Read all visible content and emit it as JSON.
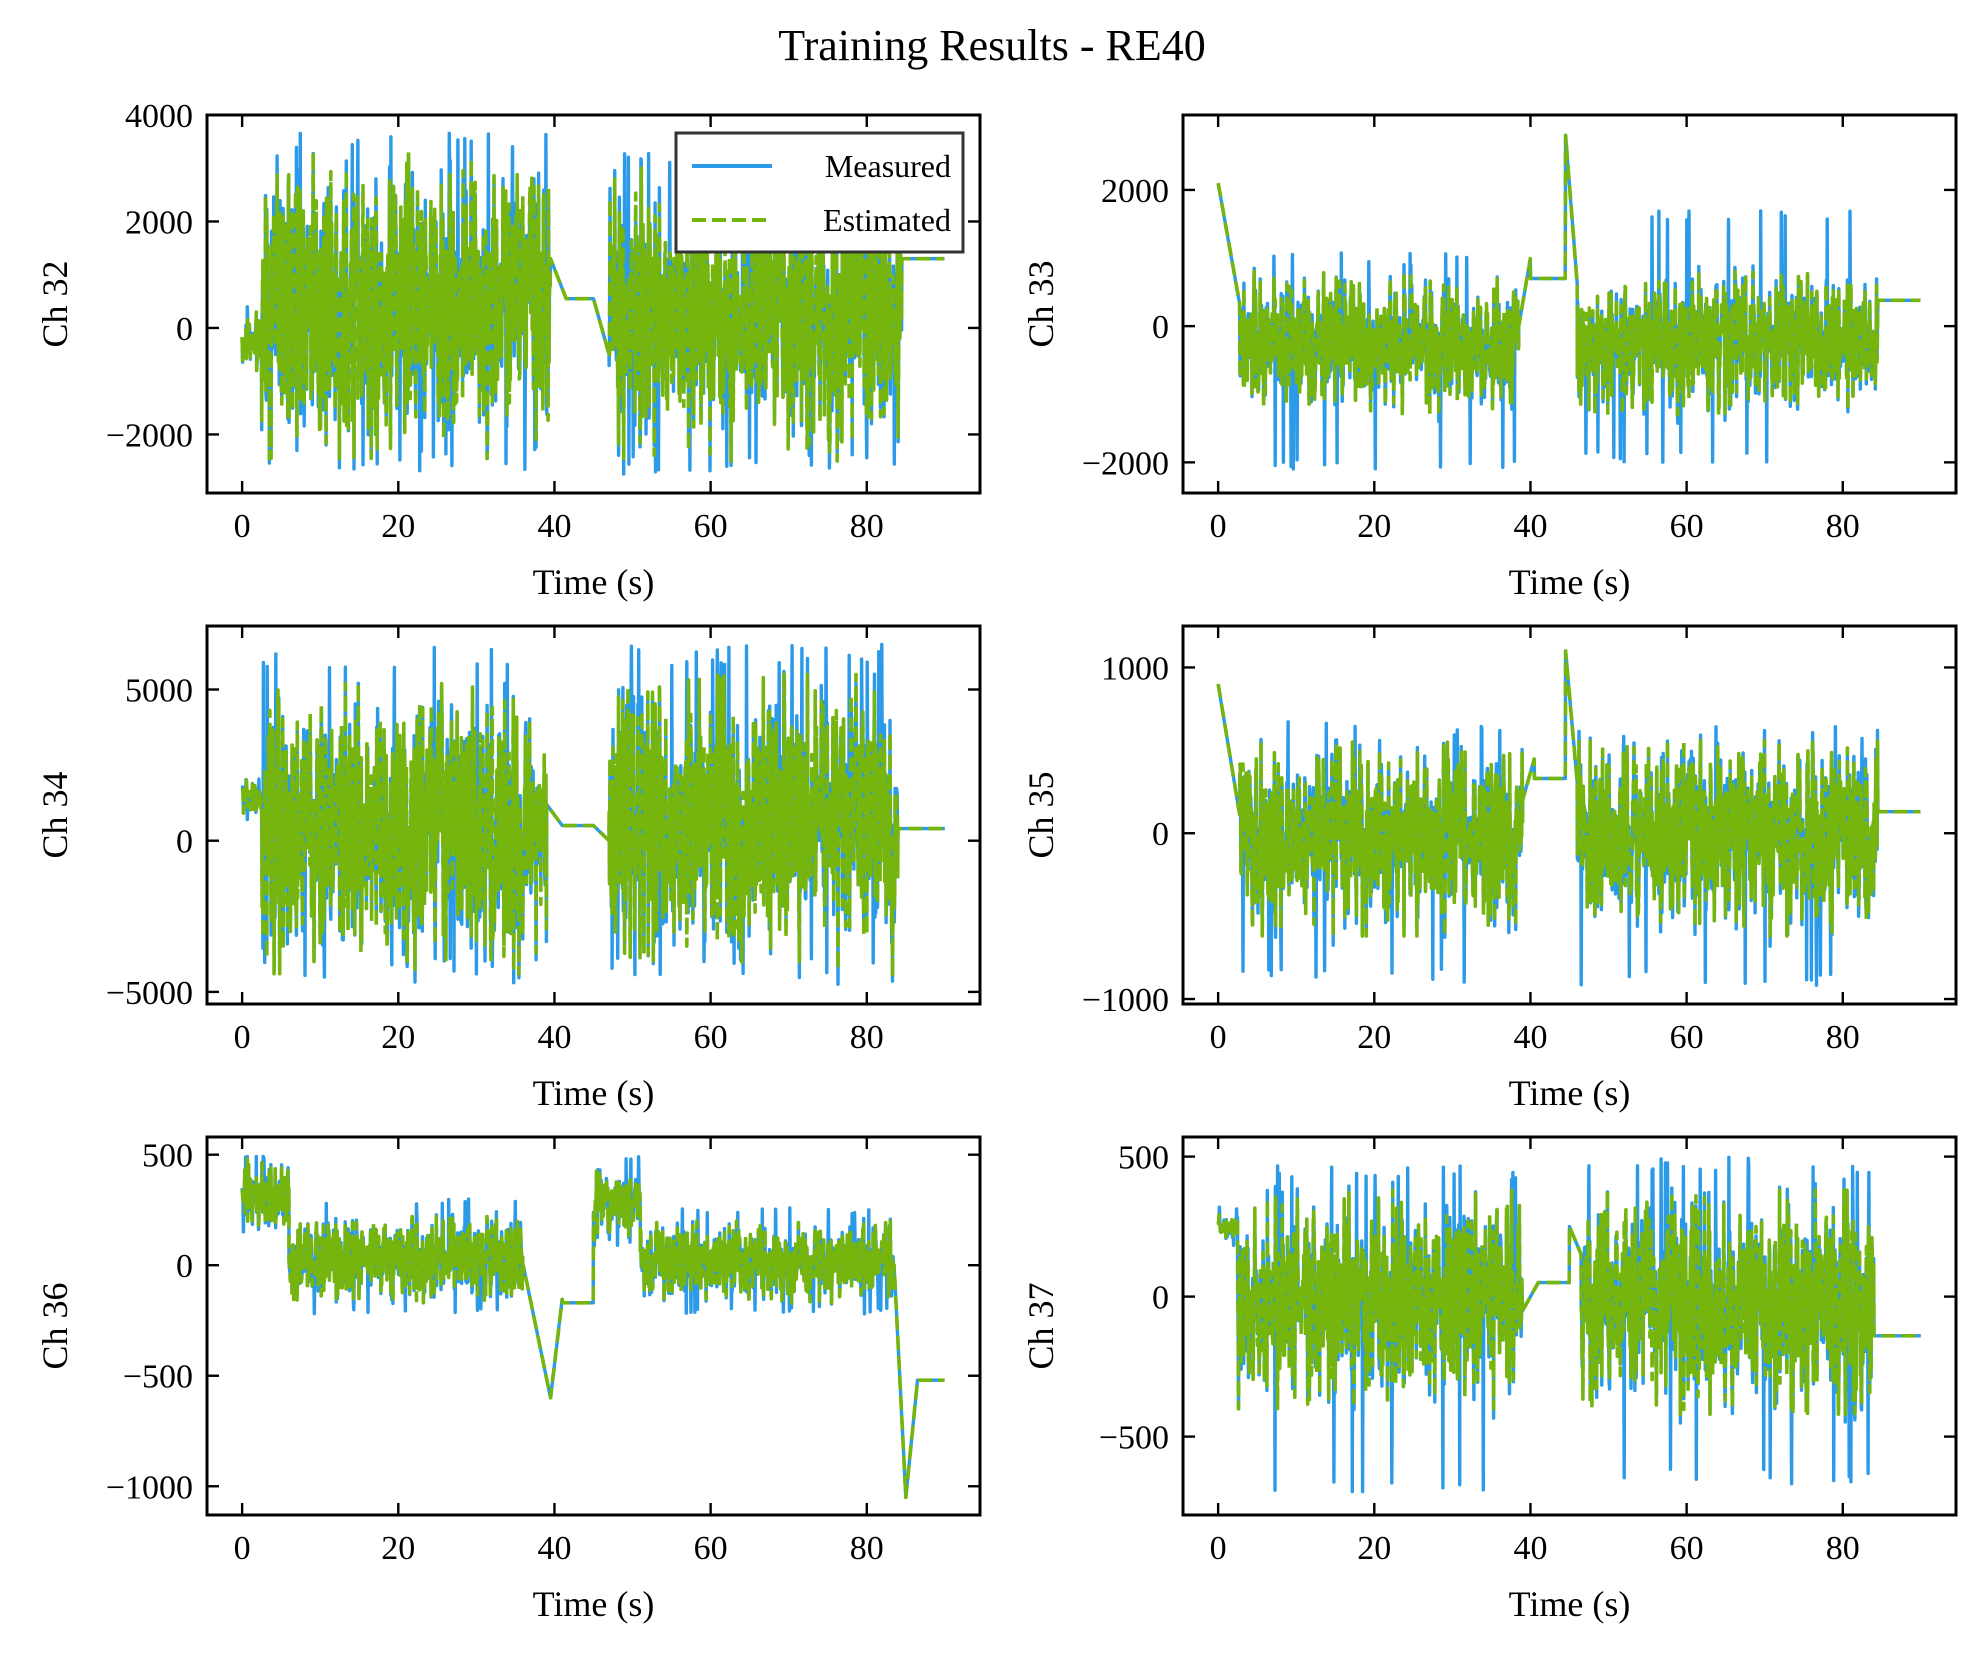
{
  "figure": {
    "title": "Training Results - RE40"
  },
  "legend": {
    "entries": [
      "Measured",
      "Estimated"
    ],
    "placement": "upper-right of first panel"
  },
  "colors": {
    "measured": "#2b9ae8",
    "estimated": "#76b40e",
    "axes": "#000000"
  },
  "chart_data": [
    {
      "type": "line",
      "channel": "Ch 32",
      "xlabel": "Time (s)",
      "ylabel": "Ch 32",
      "xlim": [
        -4.5,
        94.5
      ],
      "ylim": [
        -3100,
        4000
      ],
      "xticks": [
        0,
        20,
        40,
        60,
        80
      ],
      "yticks": [
        -2000,
        0,
        2000,
        4000
      ],
      "xtick_labels": [
        "0",
        "20",
        "40",
        "60",
        "80"
      ],
      "ytick_labels": [
        "−2000",
        "0",
        "2000",
        "4000"
      ],
      "legend": true,
      "x_end": 90,
      "segments": [
        {
          "type": "noise",
          "t0": 0,
          "t1": 2.5,
          "lo": -800,
          "hi": 300,
          "mlo": -900,
          "mhi": 400
        },
        {
          "type": "noise",
          "t0": 2.5,
          "t1": 39.5,
          "lo": -2450,
          "hi": 3300,
          "mlo": -2700,
          "mhi": 3700
        },
        {
          "type": "ramp",
          "t0": 39.5,
          "t1": 41.5,
          "v0": 1300,
          "v1": 550
        },
        {
          "type": "flat",
          "t0": 41.5,
          "t1": 45,
          "v": 550
        },
        {
          "type": "ramp",
          "t0": 45,
          "t1": 47,
          "v0": 550,
          "v1": -500
        },
        {
          "type": "noise",
          "t0": 47,
          "t1": 84.5,
          "lo": -2500,
          "hi": 3000,
          "mlo": -2800,
          "mhi": 3300
        },
        {
          "type": "flat",
          "t0": 84.5,
          "t1": 90,
          "v": 1300
        }
      ]
    },
    {
      "type": "line",
      "channel": "Ch 33",
      "xlabel": "Time (s)",
      "ylabel": "Ch 33",
      "xlim": [
        -4.5,
        94.5
      ],
      "ylim": [
        -2450,
        3100
      ],
      "xticks": [
        0,
        20,
        40,
        60,
        80
      ],
      "yticks": [
        -2000,
        0,
        2000
      ],
      "xtick_labels": [
        "0",
        "20",
        "40",
        "60",
        "80"
      ],
      "ytick_labels": [
        "−2000",
        "0",
        "2000"
      ],
      "legend": false,
      "x_end": 90,
      "segments": [
        {
          "type": "ramp",
          "t0": 0,
          "t1": 2.8,
          "v0": 2100,
          "v1": 300
        },
        {
          "type": "noise",
          "t0": 2.8,
          "t1": 38.5,
          "lo": -1300,
          "hi": 800,
          "mlo": -2100,
          "mhi": 1100
        },
        {
          "type": "ramp",
          "t0": 38.5,
          "t1": 40,
          "v0": 0,
          "v1": 1000
        },
        {
          "type": "flat",
          "t0": 40,
          "t1": 44.5,
          "v": 700
        },
        {
          "type": "ramp",
          "t0": 44.5,
          "t1": 46,
          "v0": 2800,
          "v1": 600
        },
        {
          "type": "noise",
          "t0": 46,
          "t1": 84.5,
          "lo": -1300,
          "hi": 800,
          "mlo": -2000,
          "mhi": 1700
        },
        {
          "type": "flat",
          "t0": 84.5,
          "t1": 90,
          "v": 380
        }
      ]
    },
    {
      "type": "line",
      "channel": "Ch 34",
      "xlabel": "Time (s)",
      "ylabel": "Ch 34",
      "xlim": [
        -4.5,
        94.5
      ],
      "ylim": [
        -5400,
        7100
      ],
      "xticks": [
        0,
        20,
        40,
        60,
        80
      ],
      "yticks": [
        -5000,
        0,
        5000
      ],
      "xtick_labels": [
        "0",
        "20",
        "40",
        "60",
        "80"
      ],
      "ytick_labels": [
        "−5000",
        "0",
        "5000"
      ],
      "legend": false,
      "x_end": 90,
      "segments": [
        {
          "type": "noise",
          "t0": 0,
          "t1": 2.5,
          "lo": 800,
          "hi": 2000,
          "mlo": 700,
          "mhi": 2100
        },
        {
          "type": "noise",
          "t0": 2.5,
          "t1": 39,
          "lo": -4400,
          "hi": 5200,
          "mlo": -4600,
          "mhi": 6400
        },
        {
          "type": "ramp",
          "t0": 39,
          "t1": 41,
          "v0": 1200,
          "v1": 500
        },
        {
          "type": "flat",
          "t0": 41,
          "t1": 45,
          "v": 500
        },
        {
          "type": "ramp",
          "t0": 45,
          "t1": 47,
          "v0": 500,
          "v1": 0
        },
        {
          "type": "noise",
          "t0": 47,
          "t1": 84,
          "lo": -4500,
          "hi": 5500,
          "mlo": -4600,
          "mhi": 6500
        },
        {
          "type": "flat",
          "t0": 84,
          "t1": 90,
          "v": 400
        }
      ]
    },
    {
      "type": "line",
      "channel": "Ch 35",
      "xlabel": "Time (s)",
      "ylabel": "Ch 35",
      "xlim": [
        -4.5,
        94.5
      ],
      "ylim": [
        -1030,
        1250
      ],
      "xticks": [
        0,
        20,
        40,
        60,
        80
      ],
      "yticks": [
        -1000,
        0,
        1000
      ],
      "xtick_labels": [
        "0",
        "20",
        "40",
        "60",
        "80"
      ],
      "ytick_labels": [
        "−1000",
        "0",
        "1000"
      ],
      "legend": false,
      "x_end": 90,
      "segments": [
        {
          "type": "ramp",
          "t0": 0,
          "t1": 2.8,
          "v0": 900,
          "v1": 100
        },
        {
          "type": "noise",
          "t0": 2.8,
          "t1": 39,
          "lo": -620,
          "hi": 550,
          "mlo": -900,
          "mhi": 680
        },
        {
          "type": "ramp",
          "t0": 39,
          "t1": 40.5,
          "v0": 200,
          "v1": 450
        },
        {
          "type": "flat",
          "t0": 40.5,
          "t1": 44.5,
          "v": 330
        },
        {
          "type": "ramp",
          "t0": 44.5,
          "t1": 46,
          "v0": 1100,
          "v1": 300
        },
        {
          "type": "noise",
          "t0": 46,
          "t1": 84.5,
          "lo": -620,
          "hi": 560,
          "mlo": -920,
          "mhi": 650
        },
        {
          "type": "flat",
          "t0": 84.5,
          "t1": 90,
          "v": 130
        }
      ]
    },
    {
      "type": "line",
      "channel": "Ch 36",
      "xlabel": "Time (s)",
      "ylabel": "Ch 36",
      "xlim": [
        -4.5,
        94.5
      ],
      "ylim": [
        -1130,
        580
      ],
      "xticks": [
        0,
        20,
        40,
        60,
        80
      ],
      "yticks": [
        -1000,
        -500,
        0,
        500
      ],
      "xtick_labels": [
        "0",
        "20",
        "40",
        "60",
        "80"
      ],
      "ytick_labels": [
        "−1000",
        "−500",
        "0",
        "500"
      ],
      "legend": false,
      "x_end": 90,
      "segments": [
        {
          "type": "noise",
          "t0": 0,
          "t1": 6,
          "lo": 150,
          "hi": 480,
          "mlo": 140,
          "mhi": 500
        },
        {
          "type": "noise",
          "t0": 6,
          "t1": 36,
          "lo": -170,
          "hi": 220,
          "mlo": -220,
          "mhi": 300
        },
        {
          "type": "ramp",
          "t0": 36,
          "t1": 39.5,
          "v0": 0,
          "v1": -600
        },
        {
          "type": "ramp",
          "t0": 39.5,
          "t1": 41,
          "v0": -600,
          "v1": -150
        },
        {
          "type": "flat",
          "t0": 41,
          "t1": 45,
          "v": -170
        },
        {
          "type": "noise",
          "t0": 45,
          "t1": 51,
          "lo": 100,
          "hi": 460,
          "mlo": 80,
          "mhi": 500
        },
        {
          "type": "noise",
          "t0": 51,
          "t1": 83.5,
          "lo": -170,
          "hi": 200,
          "mlo": -220,
          "mhi": 260
        },
        {
          "type": "ramp",
          "t0": 83.5,
          "t1": 85,
          "v0": 0,
          "v1": -1050
        },
        {
          "type": "ramp",
          "t0": 85,
          "t1": 86.5,
          "v0": -1050,
          "v1": -520
        },
        {
          "type": "flat",
          "t0": 86.5,
          "t1": 90,
          "v": -520
        }
      ]
    },
    {
      "type": "line",
      "channel": "Ch 37",
      "xlabel": "Time (s)",
      "ylabel": "Ch 37",
      "xlim": [
        -4.5,
        94.5
      ],
      "ylim": [
        -780,
        570
      ],
      "xticks": [
        0,
        20,
        40,
        60,
        80
      ],
      "yticks": [
        -500,
        0,
        500
      ],
      "xtick_labels": [
        "0",
        "20",
        "40",
        "60",
        "80"
      ],
      "ytick_labels": [
        "−500",
        "0",
        "500"
      ],
      "legend": false,
      "x_end": 90,
      "segments": [
        {
          "type": "noise",
          "t0": 0,
          "t1": 2.5,
          "lo": 200,
          "hi": 300,
          "mlo": 180,
          "mhi": 320
        },
        {
          "type": "noise",
          "t0": 2.5,
          "t1": 39,
          "lo": -400,
          "hi": 380,
          "mlo": -720,
          "mhi": 480
        },
        {
          "type": "ramp",
          "t0": 39,
          "t1": 41,
          "v0": -50,
          "v1": 50
        },
        {
          "type": "flat",
          "t0": 41,
          "t1": 45,
          "v": 50
        },
        {
          "type": "ramp",
          "t0": 45,
          "t1": 46.5,
          "v0": 250,
          "v1": 150
        },
        {
          "type": "noise",
          "t0": 46.5,
          "t1": 84,
          "lo": -420,
          "hi": 380,
          "mlo": -670,
          "mhi": 500
        },
        {
          "type": "flat",
          "t0": 84,
          "t1": 90,
          "v": -140
        }
      ]
    }
  ]
}
